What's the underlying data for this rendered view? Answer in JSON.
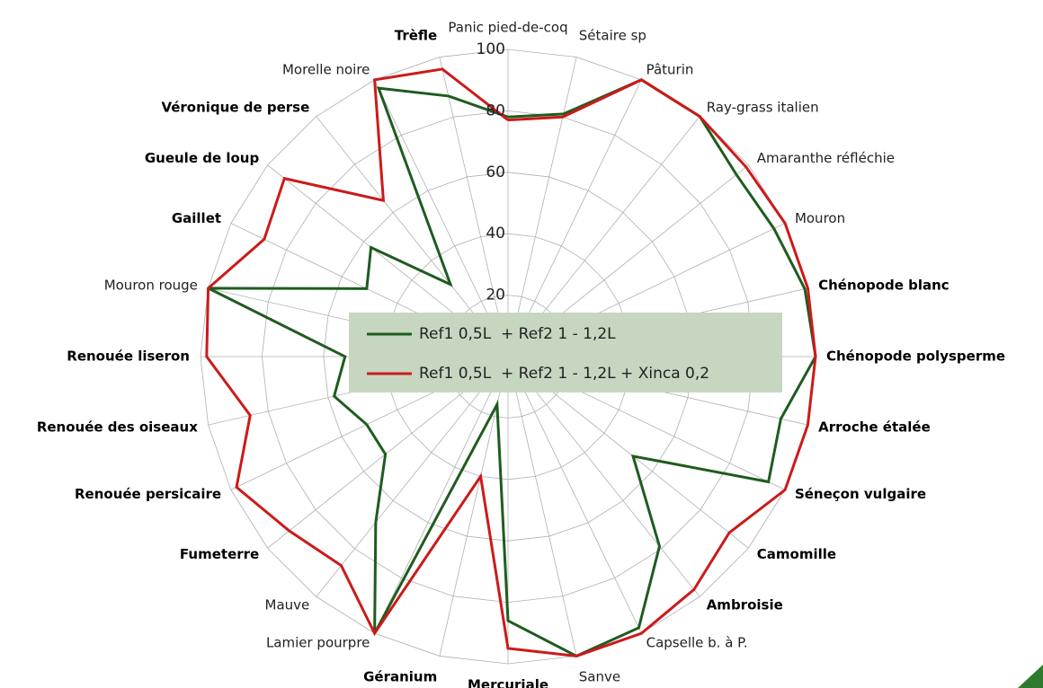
{
  "chart_data": {
    "type": "radar",
    "categories": [
      "Panic pied-de-coq",
      "Sétaire sp",
      "Pâturin",
      "Ray-grass italien",
      "Amaranthe réfléchie",
      "Mouron",
      "Chénopode blanc",
      "Chénopode polysperme",
      "Arroche étalée",
      "Séneçon vulgaire",
      "Camomille",
      "Ambroisie",
      "Capselle b. à P.",
      "Sanve",
      "Mercuriale",
      "Géranium",
      "Lamier pourpre",
      "Mauve",
      "Fumeterre",
      "Renouée persicaire",
      "Renouée des oiseaux",
      "Renouée liseron",
      "Mouron rouge",
      "Gaillet",
      "Gueule de loup",
      "Véronique de perse",
      "Morelle noire",
      "Trèfle"
    ],
    "label_bold": [
      false,
      false,
      false,
      false,
      false,
      false,
      true,
      true,
      true,
      true,
      true,
      true,
      false,
      false,
      true,
      true,
      false,
      false,
      true,
      true,
      true,
      true,
      false,
      true,
      true,
      true,
      false,
      true
    ],
    "series": [
      {
        "name": "Ref1 0,5L  + Ref2 1 - 1,2L",
        "color": "#1e5c1e",
        "values": [
          78,
          81,
          100,
          100,
          95,
          96,
          99,
          100,
          91,
          94,
          52,
          79,
          98,
          100,
          86,
          16,
          100,
          69,
          51,
          51,
          58,
          53,
          100,
          51,
          57,
          30,
          97,
          87
        ]
      },
      {
        "name": "Ref1 0,5L  + Ref2 1 - 1,2L + Xinca 0,2",
        "color": "#cc1a1a",
        "values": [
          77,
          80,
          100,
          100,
          99,
          100,
          100,
          100,
          100,
          100,
          92,
          97,
          100,
          100,
          95,
          40,
          100,
          87,
          91,
          98,
          86,
          98,
          100,
          88,
          93,
          65,
          100,
          96
        ]
      }
    ],
    "ylim": [
      0,
      100
    ],
    "yticks": [
      20,
      40,
      60,
      80,
      100
    ],
    "grid": true
  }
}
